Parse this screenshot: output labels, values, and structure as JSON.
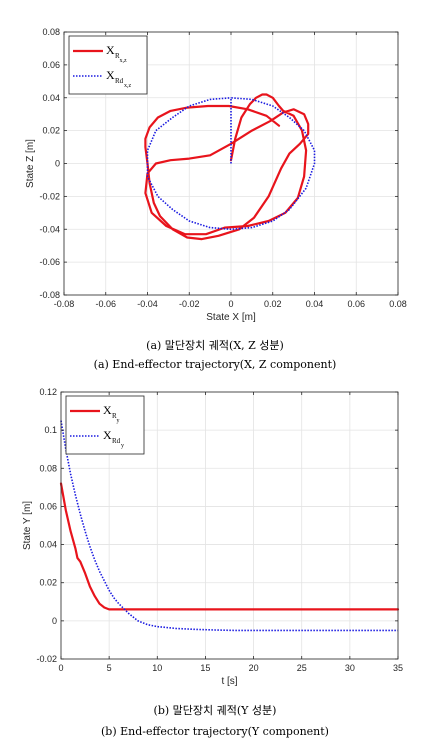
{
  "chart_data": [
    {
      "type": "line",
      "xlabel": "State X [m]",
      "ylabel": "State Z [m]",
      "xlim": [
        -0.08,
        0.08
      ],
      "ylim": [
        -0.08,
        0.08
      ],
      "xticks": [
        -0.08,
        -0.06,
        -0.04,
        -0.02,
        0,
        0.02,
        0.04,
        0.06,
        0.08
      ],
      "yticks": [
        -0.08,
        -0.06,
        -0.04,
        -0.02,
        0,
        0.02,
        0.04,
        0.06,
        0.08
      ],
      "xtick_labels": [
        "-0.08",
        "-0.06",
        "-0.04",
        "-0.02",
        "0",
        "0.02",
        "0.04",
        "0.06",
        "0.08"
      ],
      "ytick_labels": [
        "-0.08",
        "-0.06",
        "-0.04",
        "-0.02",
        "0",
        "0.02",
        "0.04",
        "0.06",
        "0.08"
      ],
      "grid": true,
      "legend": "top-left",
      "series": [
        {
          "name": "X",
          "name_sub": "R",
          "name_sub2": "x,z",
          "color": "#e8141c",
          "style": "solid",
          "x": [
            0.0,
            0.002,
            0.005,
            0.009,
            0.012,
            0.015,
            0.017,
            0.02,
            0.023,
            0.025,
            0.03,
            0.034,
            0.036,
            0.035,
            0.032,
            0.026,
            0.018,
            0.008,
            -0.003,
            -0.012,
            -0.022,
            -0.031,
            -0.038,
            -0.041,
            -0.04,
            -0.036,
            -0.029,
            -0.02,
            -0.01,
            0.0,
            0.01,
            0.019,
            0.025,
            0.03,
            0.035,
            0.037,
            0.037,
            0.033,
            0.028,
            0.024,
            0.018,
            0.011,
            0.004,
            -0.006,
            -0.014,
            -0.021,
            -0.028,
            -0.034,
            -0.037,
            -0.039,
            -0.04,
            -0.041,
            -0.041,
            -0.039,
            -0.035,
            -0.029,
            -0.021,
            -0.011,
            -0.001,
            0.008,
            0.017,
            0.023
          ],
          "y": [
            0.002,
            0.015,
            0.028,
            0.036,
            0.04,
            0.042,
            0.042,
            0.04,
            0.035,
            0.032,
            0.029,
            0.02,
            0.008,
            -0.008,
            -0.021,
            -0.03,
            -0.035,
            -0.038,
            -0.039,
            -0.043,
            -0.043,
            -0.038,
            -0.03,
            -0.018,
            -0.006,
            0.0,
            0.002,
            0.003,
            0.005,
            0.012,
            0.02,
            0.026,
            0.031,
            0.033,
            0.03,
            0.024,
            0.018,
            0.012,
            0.006,
            -0.003,
            -0.02,
            -0.033,
            -0.04,
            -0.044,
            -0.046,
            -0.045,
            -0.04,
            -0.032,
            -0.024,
            -0.012,
            0.0,
            0.01,
            0.015,
            0.022,
            0.028,
            0.032,
            0.034,
            0.035,
            0.035,
            0.033,
            0.029,
            0.023
          ]
        },
        {
          "name": "X",
          "name_sub": "Rd",
          "name_sub2": "x,z",
          "color": "#1a1ae0",
          "style": "dotted",
          "x": [
            0.0,
            0.0,
            0.0,
            0.01,
            0.02,
            0.028,
            0.035,
            0.04,
            0.04,
            0.036,
            0.028,
            0.02,
            0.01,
            0.0,
            -0.01,
            -0.02,
            -0.028,
            -0.035,
            -0.04,
            -0.04,
            -0.036,
            -0.028,
            -0.02,
            -0.01,
            0.0
          ],
          "y": [
            0.0,
            0.02,
            0.04,
            0.039,
            0.035,
            0.028,
            0.02,
            0.008,
            0.0,
            -0.015,
            -0.028,
            -0.035,
            -0.039,
            -0.04,
            -0.039,
            -0.035,
            -0.028,
            -0.02,
            -0.008,
            0.008,
            0.02,
            0.028,
            0.035,
            0.039,
            0.04
          ]
        }
      ]
    },
    {
      "type": "line",
      "xlabel": "t [s]",
      "ylabel": "State Y [m]",
      "xlim": [
        0,
        35
      ],
      "ylim": [
        -0.02,
        0.12
      ],
      "xticks": [
        0,
        5,
        10,
        15,
        20,
        25,
        30,
        35
      ],
      "yticks": [
        -0.02,
        0,
        0.02,
        0.04,
        0.06,
        0.08,
        0.1,
        0.12
      ],
      "xtick_labels": [
        "0",
        "5",
        "10",
        "15",
        "20",
        "25",
        "30",
        "35"
      ],
      "ytick_labels": [
        "-0.02",
        "0",
        "0.02",
        "0.04",
        "0.06",
        "0.08",
        "0.1",
        "0.12"
      ],
      "grid": true,
      "legend": "top-left",
      "series": [
        {
          "name": "X",
          "name_sub": "R",
          "name_sub2": "y",
          "color": "#e8141c",
          "style": "solid",
          "x": [
            0,
            0.5,
            1.0,
            1.5,
            1.7,
            2.0,
            2.5,
            3.0,
            3.5,
            4.0,
            4.5,
            5.0,
            5.5,
            6.0,
            10,
            15,
            20,
            25,
            30,
            35
          ],
          "y": [
            0.072,
            0.058,
            0.047,
            0.038,
            0.033,
            0.031,
            0.025,
            0.018,
            0.013,
            0.009,
            0.007,
            0.006,
            0.006,
            0.006,
            0.006,
            0.006,
            0.006,
            0.006,
            0.006,
            0.006
          ]
        },
        {
          "name": "X",
          "name_sub": "Rd",
          "name_sub2": "y",
          "color": "#1a1ae0",
          "style": "dotted",
          "x": [
            0,
            0.5,
            1,
            1.5,
            2,
            2.5,
            3,
            3.5,
            4,
            4.5,
            5,
            5.5,
            6,
            7,
            8,
            9,
            10,
            12,
            14,
            16,
            18,
            20,
            25,
            30,
            35
          ],
          "y": [
            0.105,
            0.09,
            0.077,
            0.066,
            0.056,
            0.047,
            0.039,
            0.032,
            0.026,
            0.021,
            0.016,
            0.012,
            0.009,
            0.004,
            0.0,
            -0.002,
            -0.003,
            -0.004,
            -0.0045,
            -0.0048,
            -0.005,
            -0.005,
            -0.005,
            -0.005,
            -0.005
          ]
        }
      ]
    }
  ],
  "captions": {
    "a_korean": "(a) 말단장치 궤적(X, Z 성분)",
    "a_english": "(a) End-effector trajectory(X, Z component)",
    "b_korean": "(b) 말단장치 궤적(Y 성분)",
    "b_english": "(b) End-effector trajectory(Y component)"
  }
}
